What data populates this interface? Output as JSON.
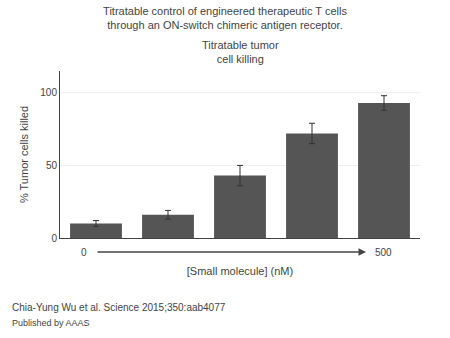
{
  "chart_data": {
    "type": "bar",
    "title": "Titratable control of engineered therapeutic T cells through an ON-switch chimeric antigen receptor.",
    "subtitle": "Titratable tumor\ncell killing",
    "ylabel": "% Tumor cells killed",
    "xlabel": "[Small molecule] (nM)",
    "categories": [
      null,
      null,
      null,
      null,
      null
    ],
    "values": [
      10,
      16,
      43,
      72,
      93
    ],
    "errors": [
      2,
      3,
      7,
      7,
      5
    ],
    "color": "#555555",
    "ylim": [
      0,
      115
    ],
    "yticks": [
      0,
      50,
      100
    ],
    "grid": true,
    "annotations": [
      "0",
      "500",
      "Chia-Yung Wu et al. Science 2015;350:aab4077",
      "Published by AAAS"
    ]
  }
}
